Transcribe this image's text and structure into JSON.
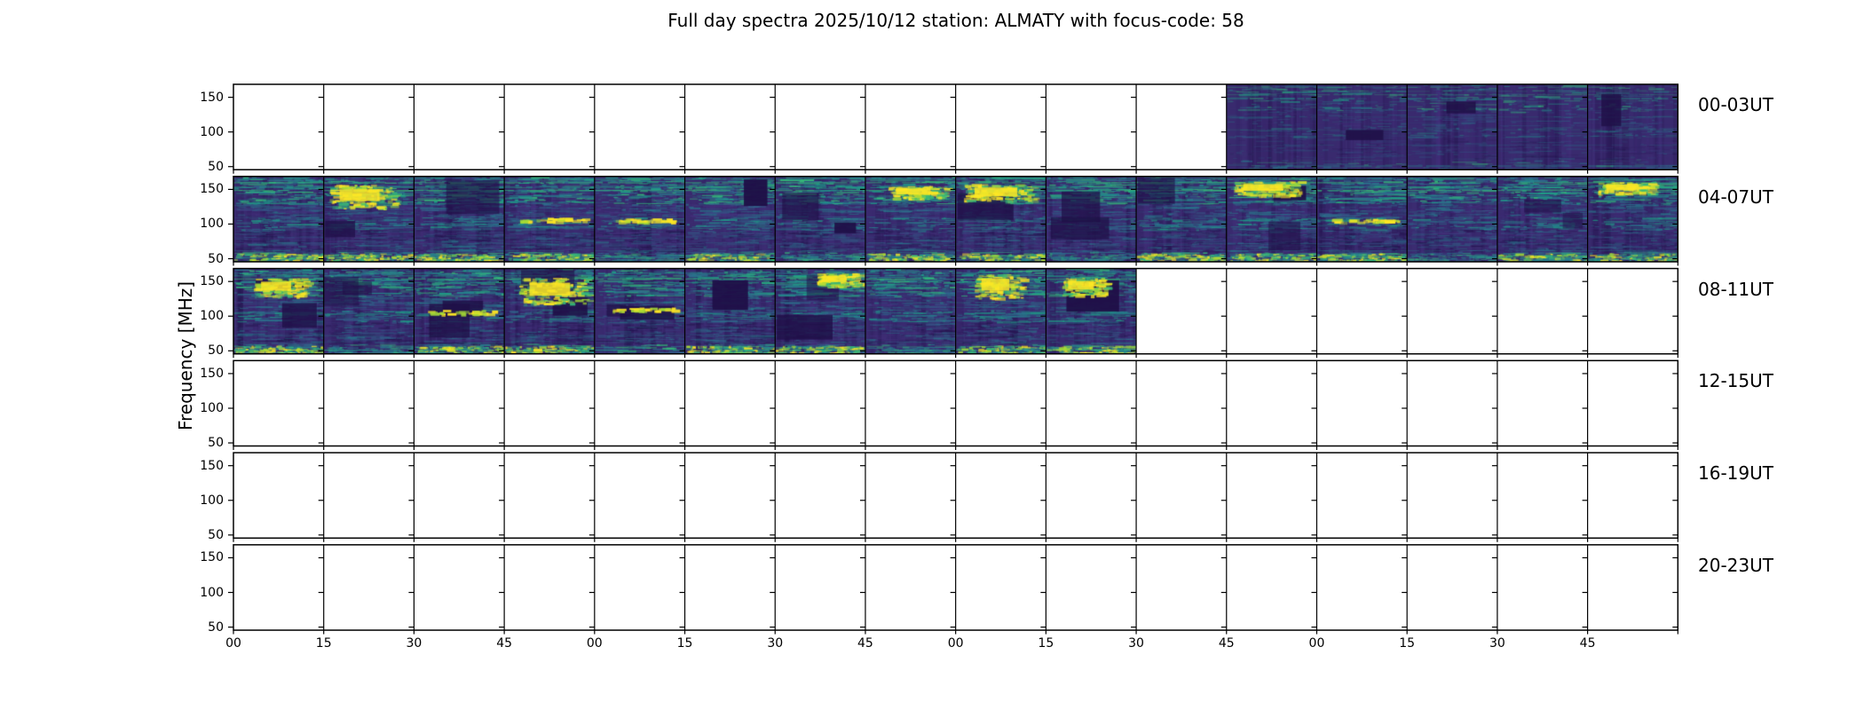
{
  "chart_data": {
    "type": "heatmap",
    "subtype": "dynamic-spectra-grid",
    "title": "Full day spectra 2025/10/12 station: ALMATY with focus-code: 58",
    "date": "2025/10/12",
    "station": "ALMATY",
    "focus_code": "58",
    "ylabel": "Frequency [MHz]",
    "colormap": "viridis",
    "y_ticks": [
      "150",
      "100",
      "50"
    ],
    "ylim": [
      45,
      168
    ],
    "x_tick_labels": [
      "00",
      "15",
      "30",
      "45",
      "00",
      "15",
      "30",
      "45",
      "00",
      "15",
      "30",
      "45",
      "00",
      "15",
      "30",
      "45"
    ],
    "subpanels_per_row": 16,
    "minutes_per_subpanel": 15,
    "rows": [
      {
        "label": "00-03UT",
        "data_cells_from": 11,
        "data_cells_to": 15,
        "data_start": "02:45",
        "data_end": "04:00",
        "activity": "low",
        "yellow_top_cells": [],
        "yellow_mid_cells": [],
        "bottom_band_cells": []
      },
      {
        "label": "04-07UT",
        "data_cells_from": 0,
        "data_cells_to": 15,
        "data_start": "04:00",
        "data_end": "08:00",
        "activity": "high",
        "yellow_top_cells": [
          1,
          7,
          8,
          11,
          15
        ],
        "yellow_mid_cells": [
          3,
          4,
          12
        ],
        "bottom_band_cells": [
          0,
          1,
          2,
          3,
          5,
          7,
          8,
          10,
          11,
          12,
          14,
          15
        ]
      },
      {
        "label": "08-11UT",
        "data_cells_from": 0,
        "data_cells_to": 9,
        "data_start": "08:00",
        "data_end": "10:30",
        "activity": "high",
        "yellow_top_cells": [
          0,
          3,
          6,
          8,
          9
        ],
        "yellow_mid_cells": [
          2,
          4
        ],
        "bottom_band_cells": [
          0,
          2,
          3,
          5,
          6,
          8,
          9
        ]
      },
      {
        "label": "12-15UT",
        "data_cells_from": null,
        "data_cells_to": null,
        "data_start": null,
        "data_end": null,
        "activity": "none",
        "yellow_top_cells": [],
        "yellow_mid_cells": [],
        "bottom_band_cells": []
      },
      {
        "label": "16-19UT",
        "data_cells_from": null,
        "data_cells_to": null,
        "data_start": null,
        "data_end": null,
        "activity": "none",
        "yellow_top_cells": [],
        "yellow_mid_cells": [],
        "bottom_band_cells": []
      },
      {
        "label": "20-23UT",
        "data_cells_from": null,
        "data_cells_to": null,
        "data_start": null,
        "data_end": null,
        "activity": "none",
        "yellow_top_cells": [],
        "yellow_mid_cells": [],
        "bottom_band_cells": []
      }
    ],
    "palette": {
      "background": "#ffffff",
      "axis": "#000000",
      "base": "#392a6e",
      "dark": "#1f0f47",
      "purple": "#440154",
      "violet": "#46327e",
      "blue": "#31688e",
      "teal": "#26828e",
      "seagreen": "#1fa187",
      "green": "#35b779",
      "lime": "#a5db36",
      "yellow": "#fde725"
    }
  }
}
